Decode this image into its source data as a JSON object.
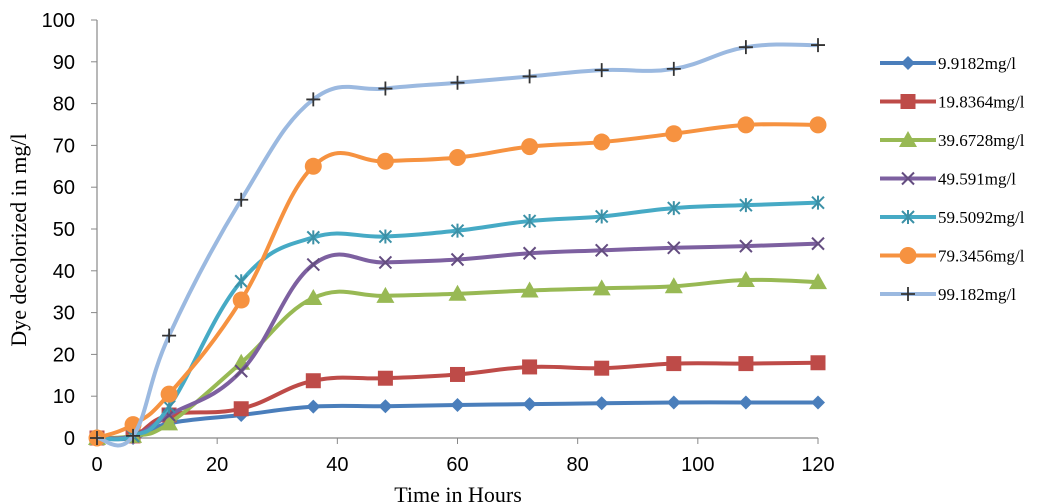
{
  "chart_data": {
    "type": "line",
    "title": "",
    "xlabel": "Time in Hours",
    "ylabel": "Dye decolorized in mg/l",
    "xlim": [
      0,
      120
    ],
    "ylim": [
      0,
      100
    ],
    "x_ticks": [
      "0",
      "20",
      "40",
      "60",
      "80",
      "100",
      "120"
    ],
    "y_ticks": [
      "0",
      "10",
      "20",
      "30",
      "40",
      "50",
      "60",
      "70",
      "80",
      "90",
      "100"
    ],
    "grid": false,
    "legend_position": "right",
    "x": [
      0,
      6,
      12,
      24,
      36,
      48,
      60,
      72,
      84,
      96,
      108,
      120
    ],
    "series": [
      {
        "name": "9.9182mg/l",
        "color": "#4a7ebb",
        "marker": "diamond",
        "values": [
          0,
          0,
          3.5,
          5.5,
          7.5,
          7.6,
          7.9,
          8.1,
          8.3,
          8.5,
          8.5,
          8.5
        ]
      },
      {
        "name": "19.8364mg/l",
        "color": "#be4b48",
        "marker": "square",
        "values": [
          0,
          0.5,
          5.5,
          7,
          13.7,
          14.3,
          15.2,
          17,
          16.7,
          17.8,
          17.8,
          18
        ]
      },
      {
        "name": "39.6728mg/l",
        "color": "#98b954",
        "marker": "triangle",
        "values": [
          0,
          0.5,
          3.5,
          18,
          33.5,
          34,
          34.5,
          35.3,
          35.8,
          36.3,
          37.8,
          37.3
        ]
      },
      {
        "name": "49.591mg/l",
        "color": "#7d60a0",
        "marker": "x",
        "values": [
          0,
          0.5,
          5.5,
          16,
          41.5,
          42,
          42.7,
          44.2,
          44.9,
          45.5,
          45.9,
          46.5
        ]
      },
      {
        "name": "59.5092mg/l",
        "color": "#46aac5",
        "marker": "star",
        "values": [
          0,
          0.5,
          7.5,
          37.5,
          48,
          48.2,
          49.6,
          51.9,
          53,
          55,
          55.7,
          56.3
        ]
      },
      {
        "name": "79.3456mg/l",
        "color": "#f69240",
        "marker": "circle",
        "values": [
          0,
          3.2,
          10.5,
          33,
          65,
          66.2,
          67.1,
          69.7,
          70.8,
          72.8,
          74.9,
          74.9
        ]
      },
      {
        "name": "99.182mg/l",
        "color": "#9bb9e0",
        "marker": "plus",
        "values": [
          0,
          0.5,
          24.5,
          57,
          81,
          83.6,
          85,
          86.5,
          88,
          88.3,
          93.5,
          94
        ]
      }
    ]
  }
}
